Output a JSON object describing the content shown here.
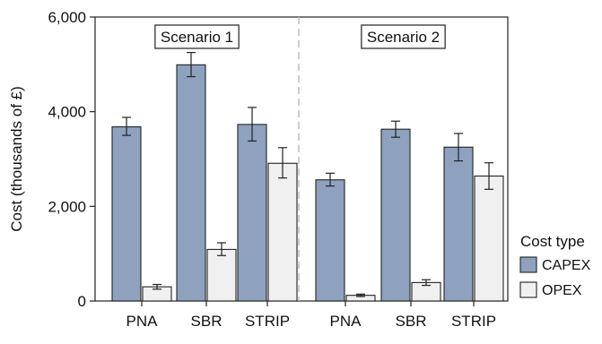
{
  "chart_data": {
    "type": "bar",
    "ylabel": "Cost (thousands of £)",
    "xlabel": "",
    "ylim": [
      0,
      6000
    ],
    "yticks": [
      0,
      2000,
      4000,
      6000
    ],
    "ytick_labels": [
      "0",
      "2,000",
      "4,000",
      "6,000"
    ],
    "grid": false,
    "error_bars": true,
    "legend": {
      "title": "Cost type",
      "placement": "right",
      "items": [
        {
          "label": "CAPEX",
          "color": "#8ea2bf"
        },
        {
          "label": "OPEX",
          "color": "#f0f0f0"
        }
      ]
    },
    "panels": [
      {
        "label": "Scenario 1",
        "categories": [
          "PNA",
          "SBR",
          "STRIP"
        ],
        "series": [
          {
            "name": "CAPEX",
            "values": [
              3680,
              4990,
              3730
            ],
            "err_low": [
              3500,
              4740,
              3380
            ],
            "err_high": [
              3880,
              5250,
              4090
            ]
          },
          {
            "name": "OPEX",
            "values": [
              300,
              1090,
              2910
            ],
            "err_low": [
              250,
              960,
              2600
            ],
            "err_high": [
              350,
              1230,
              3240
            ]
          }
        ]
      },
      {
        "label": "Scenario 2",
        "categories": [
          "PNA",
          "SBR",
          "STRIP"
        ],
        "series": [
          {
            "name": "CAPEX",
            "values": [
              2560,
              3630,
              3250
            ],
            "err_low": [
              2430,
              3460,
              2960
            ],
            "err_high": [
              2700,
              3800,
              3540
            ]
          },
          {
            "name": "OPEX",
            "values": [
              120,
              390,
              2640
            ],
            "err_low": [
              95,
              330,
              2360
            ],
            "err_high": [
              145,
              450,
              2920
            ]
          }
        ]
      }
    ]
  }
}
